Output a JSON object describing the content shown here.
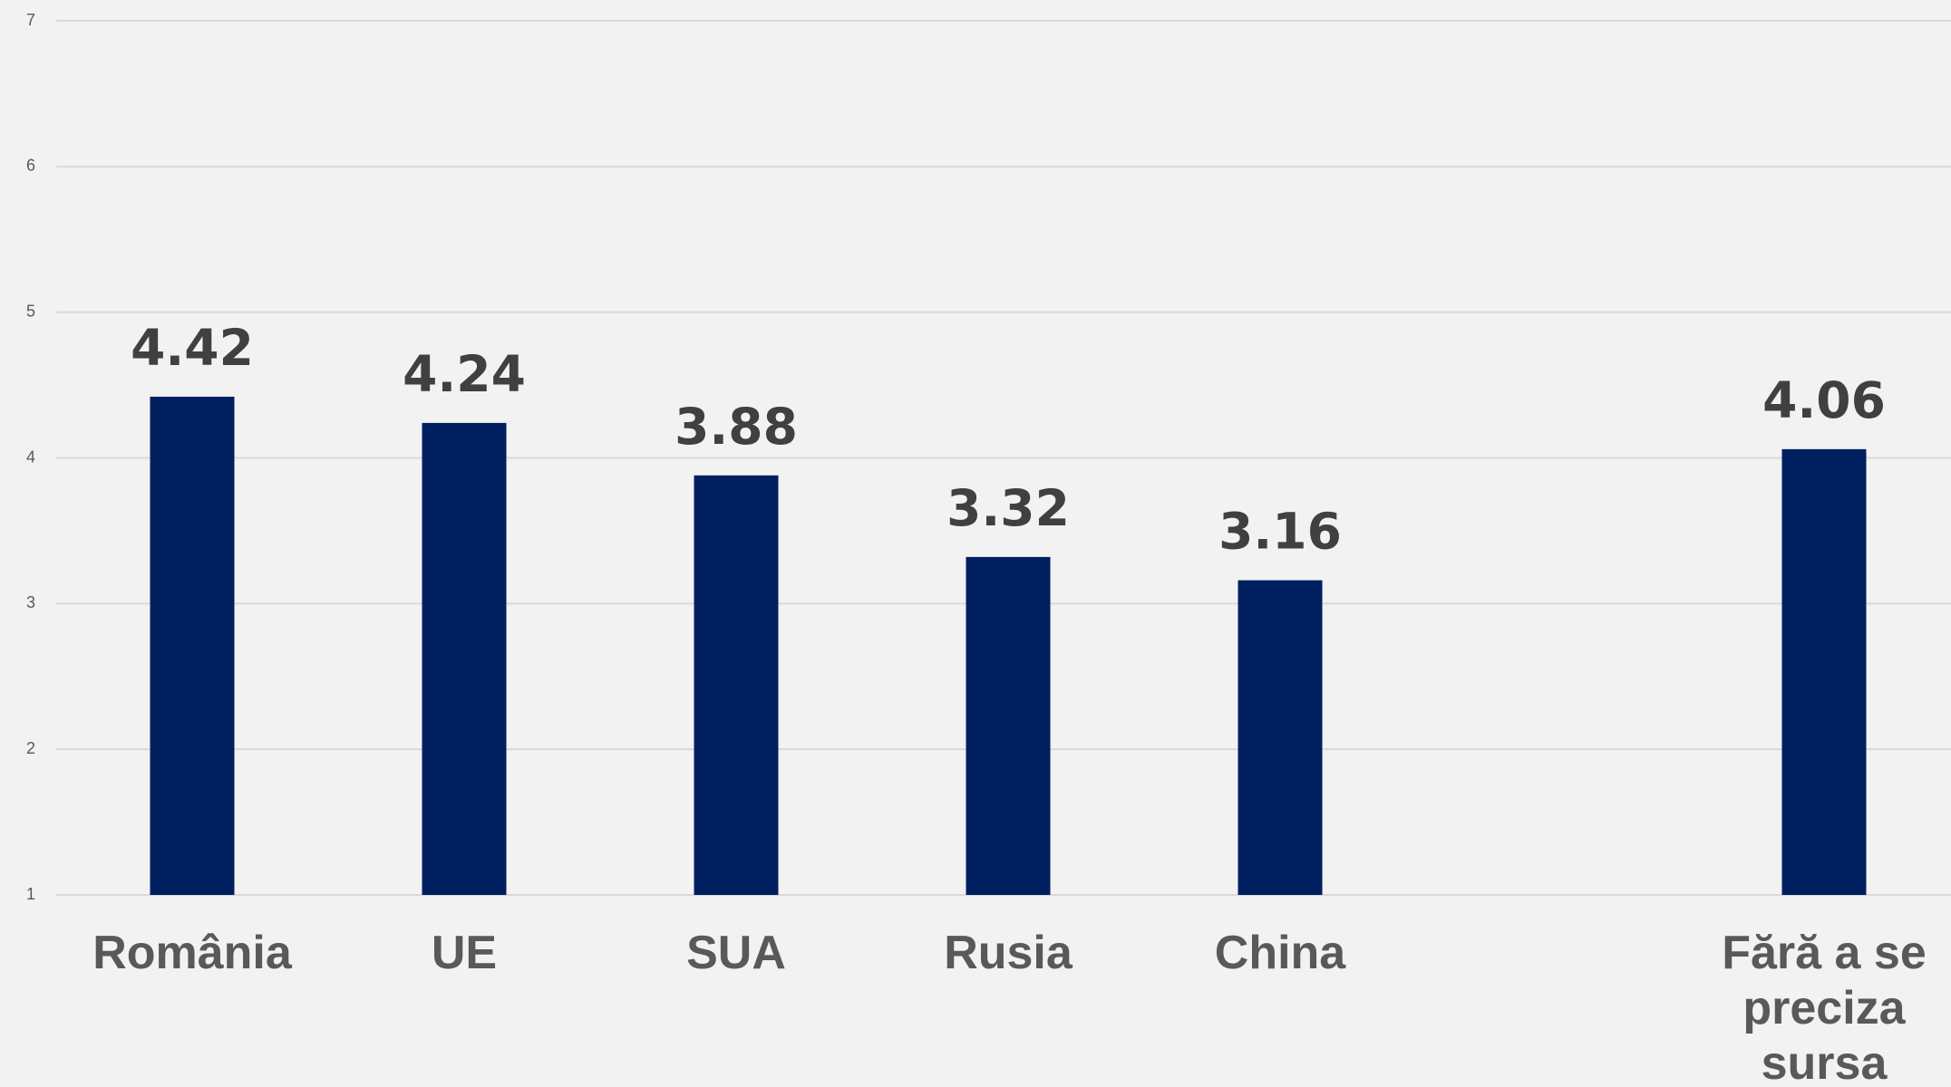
{
  "chart_data": {
    "type": "bar",
    "categories": [
      "România",
      "UE",
      "SUA",
      "Rusia",
      "China",
      null,
      "Fără a se preciza sursa"
    ],
    "values": [
      4.42,
      4.24,
      3.88,
      3.32,
      3.16,
      null,
      4.06
    ],
    "color": "#001f5f",
    "ylim": [
      1,
      7
    ],
    "yticks": [
      1,
      2,
      3,
      4,
      5,
      6,
      7
    ],
    "grid": true
  }
}
